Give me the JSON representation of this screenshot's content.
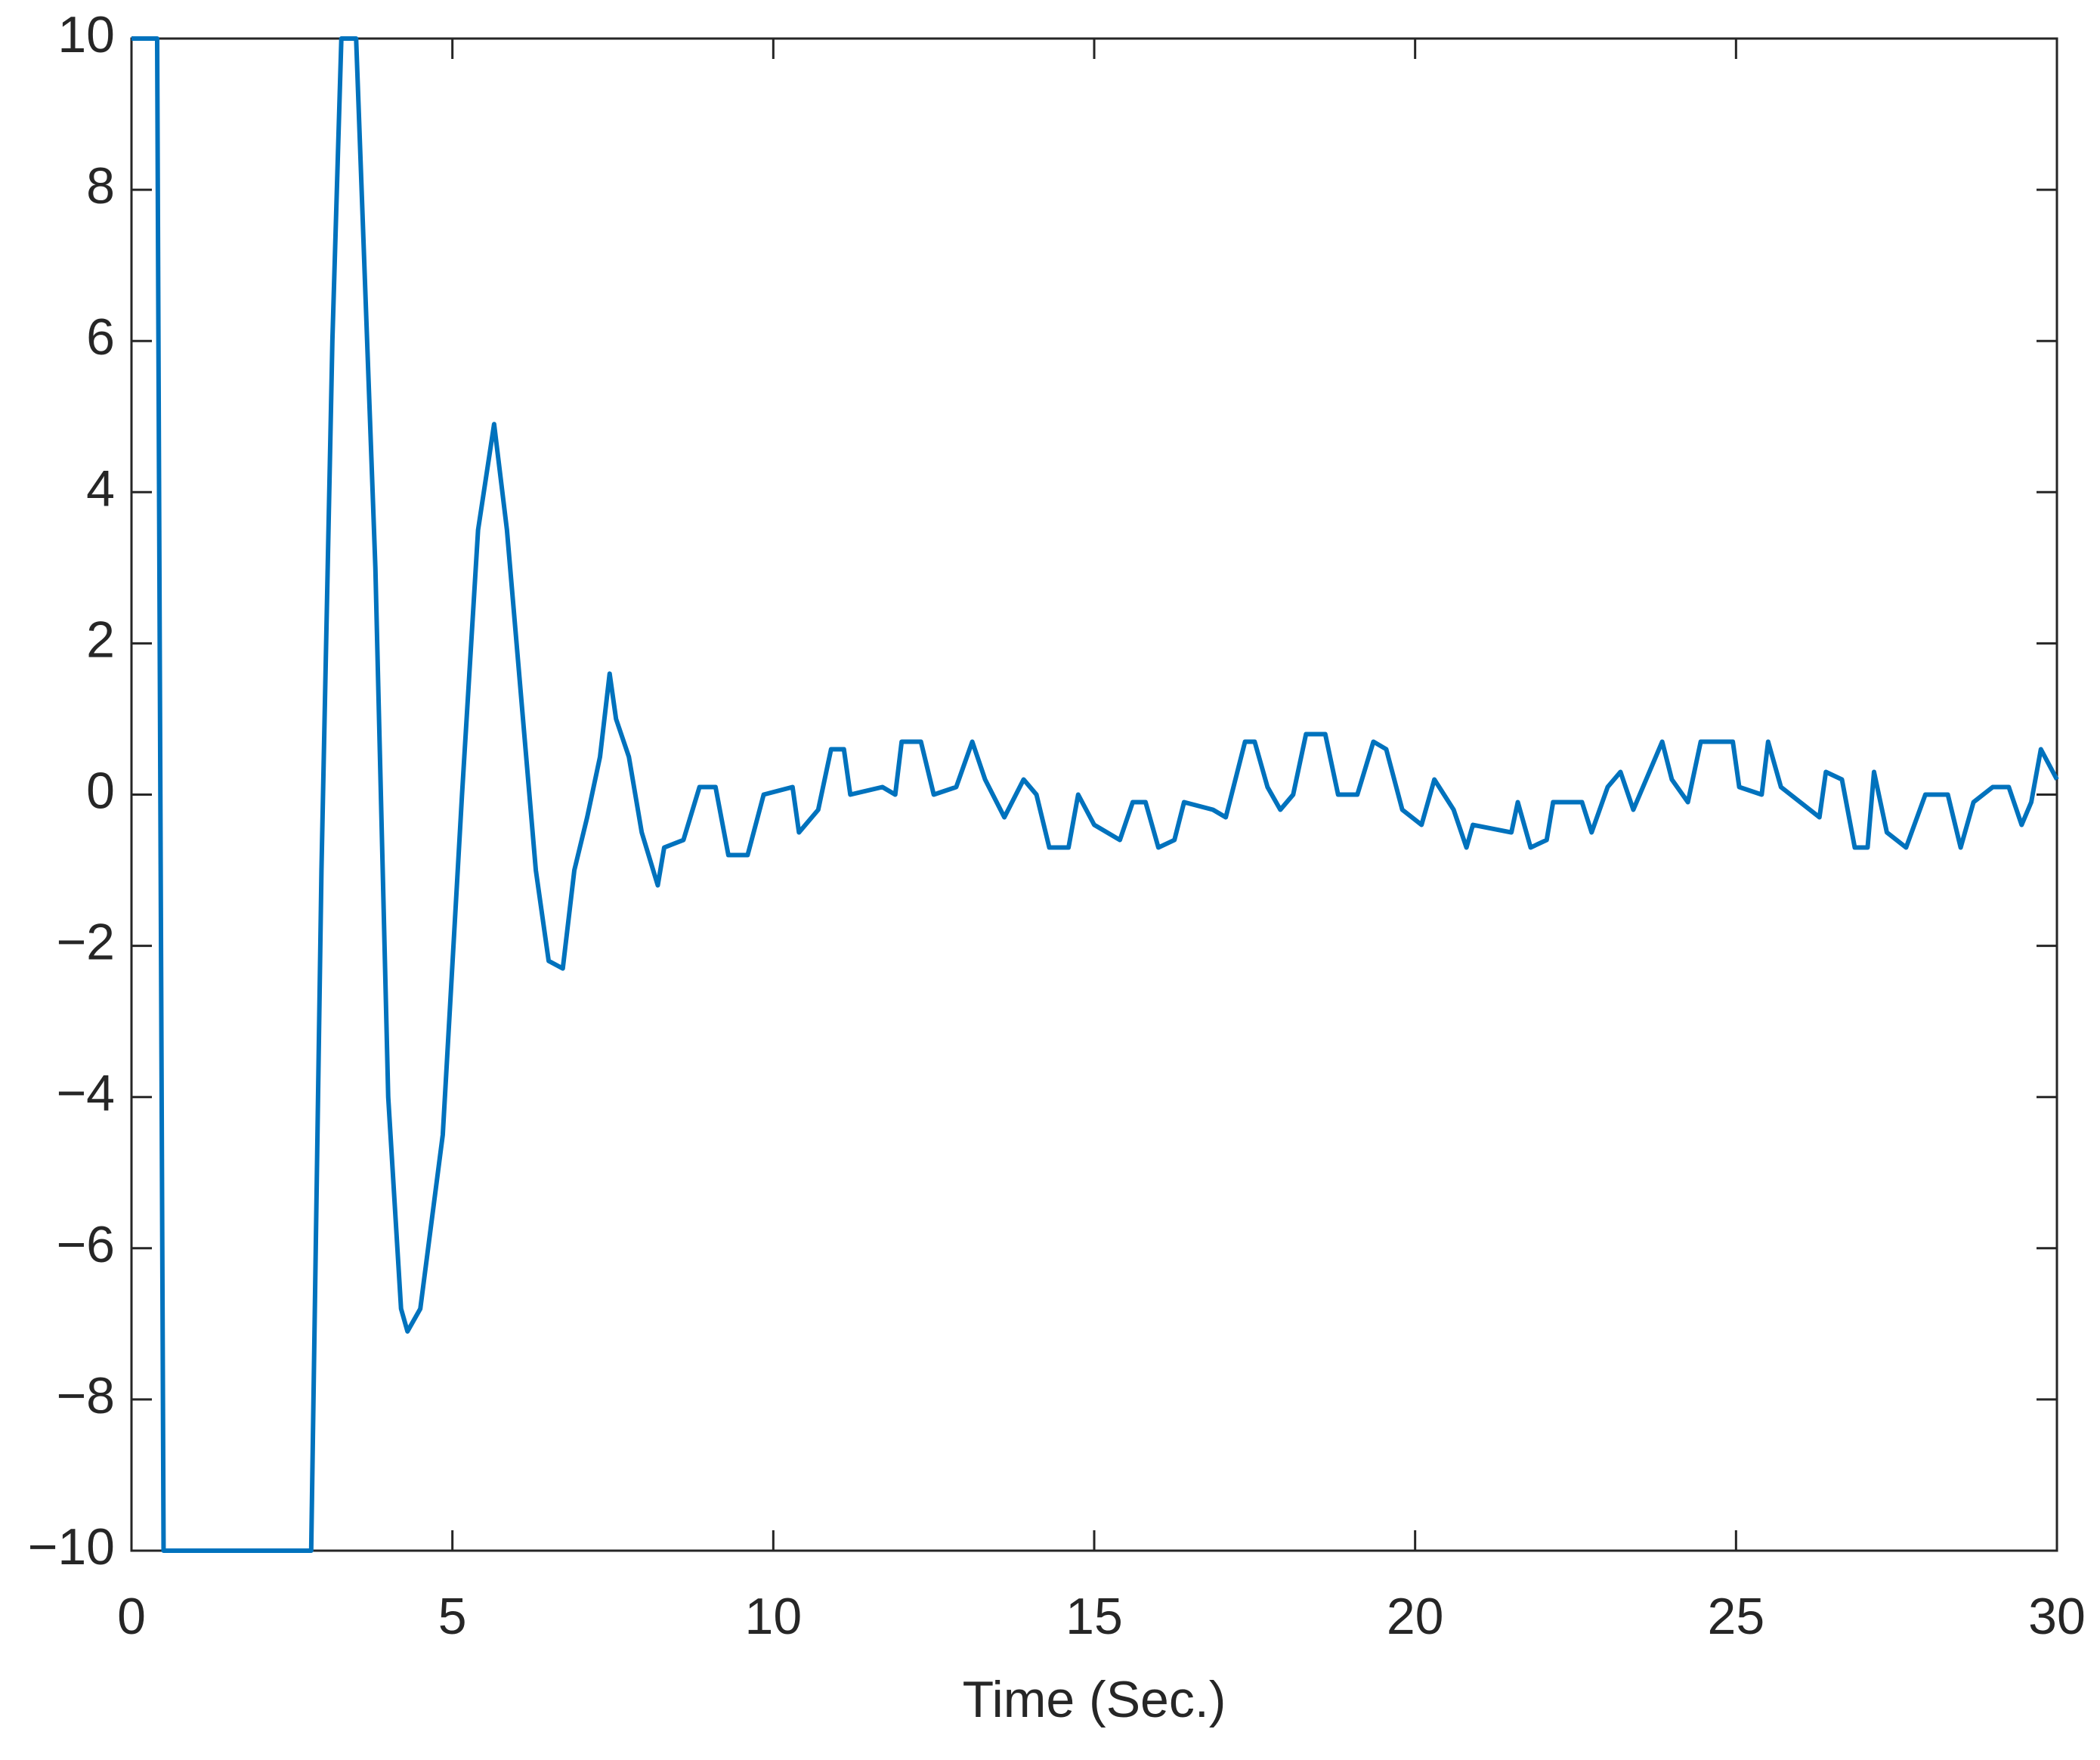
{
  "chart_data": {
    "type": "line",
    "x_label": "Time (Sec.)",
    "xlim": [
      0,
      30
    ],
    "ylim": [
      -10,
      10
    ],
    "xticks": [
      0,
      5,
      10,
      15,
      20,
      25,
      30
    ],
    "yticks": [
      {
        "value": -10,
        "label": "−10"
      },
      {
        "value": -8,
        "label": "−8"
      },
      {
        "value": -6,
        "label": "−6"
      },
      {
        "value": -4,
        "label": "−4"
      },
      {
        "value": -2,
        "label": "−2"
      },
      0,
      2,
      4,
      6,
      8,
      10
    ],
    "grid": false,
    "x": [
      0,
      0.4,
      0.5,
      2.8,
      2.96,
      3.13,
      3.27,
      3.5,
      3.8,
      4.0,
      4.2,
      4.3,
      4.5,
      4.85,
      5.15,
      5.4,
      5.65,
      5.85,
      6.1,
      6.3,
      6.5,
      6.72,
      6.9,
      7.1,
      7.3,
      7.45,
      7.55,
      7.75,
      7.95,
      8.2,
      8.3,
      8.6,
      8.85,
      9.1,
      9.3,
      9.6,
      9.85,
      10.3,
      10.4,
      10.7,
      10.9,
      11.1,
      11.2,
      11.7,
      11.9,
      12.0,
      12.3,
      12.5,
      12.85,
      13.1,
      13.3,
      13.6,
      13.9,
      14.1,
      14.3,
      14.6,
      14.75,
      15.0,
      15.4,
      15.6,
      15.8,
      16.0,
      16.25,
      16.4,
      16.85,
      17.05,
      17.35,
      17.5,
      17.7,
      17.9,
      18.1,
      18.3,
      18.6,
      18.8,
      19.1,
      19.35,
      19.55,
      19.8,
      20.1,
      20.3,
      20.6,
      20.8,
      20.9,
      21.5,
      21.6,
      21.8,
      22.05,
      22.15,
      22.6,
      22.75,
      23.0,
      23.2,
      23.4,
      23.85,
      24.0,
      24.25,
      24.45,
      24.95,
      25.05,
      25.4,
      25.5,
      25.7,
      26.0,
      26.3,
      26.4,
      26.65,
      26.85,
      27.05,
      27.15,
      27.35,
      27.65,
      27.95,
      28.3,
      28.5,
      28.7,
      29.0,
      29.25,
      29.45,
      29.6,
      29.75,
      30
    ],
    "series": [
      {
        "color": "#0072bd",
        "values": [
          10,
          10,
          -10,
          -10,
          -1,
          6,
          10,
          10,
          3,
          -4,
          -6.8,
          -7.1,
          -6.8,
          -4.5,
          0,
          3.5,
          4.9,
          3.5,
          1,
          -1,
          -2.2,
          -2.3,
          -1,
          -0.3,
          0.5,
          1.6,
          1,
          0.5,
          -0.5,
          -1.2,
          -0.7,
          -0.6,
          0.1,
          0.1,
          -0.8,
          -0.8,
          0,
          0.1,
          -0.5,
          -0.2,
          0.6,
          0.6,
          0,
          0.1,
          0,
          0.7,
          0.7,
          0,
          0.1,
          0.7,
          0.2,
          -0.3,
          0.2,
          0,
          -0.7,
          -0.7,
          0,
          -0.4,
          -0.6,
          -0.1,
          -0.1,
          -0.7,
          -0.6,
          -0.1,
          -0.2,
          -0.3,
          0.7,
          0.7,
          0.1,
          -0.2,
          0,
          0.8,
          0.8,
          0,
          0,
          0.7,
          0.6,
          -0.2,
          -0.4,
          0.2,
          -0.2,
          -0.7,
          -0.4,
          -0.5,
          -0.1,
          -0.7,
          -0.6,
          -0.1,
          -0.1,
          -0.5,
          0.1,
          0.3,
          -0.2,
          0.7,
          0.2,
          -0.1,
          0.7,
          0.7,
          0.1,
          0,
          0.7,
          0.1,
          -0.1,
          -0.3,
          0.3,
          0.2,
          -0.7,
          -0.7,
          0.3,
          -0.5,
          -0.7,
          0,
          0,
          -0.7,
          -0.1,
          0.1,
          0.1,
          -0.4,
          -0.1,
          0.6,
          0.2
        ]
      }
    ]
  }
}
